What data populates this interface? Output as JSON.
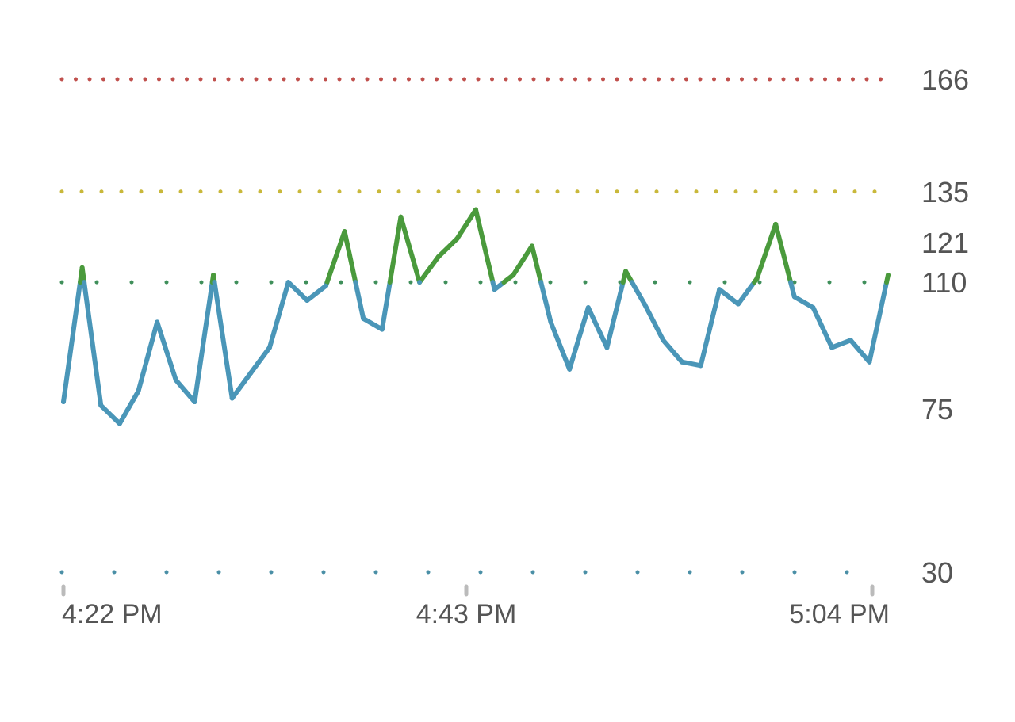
{
  "chart_data": {
    "type": "line",
    "title": "",
    "xlabel": "",
    "ylabel": "",
    "ylim": [
      30,
      166
    ],
    "xlim": [
      "4:20 PM",
      "5:04 PM"
    ],
    "x_ticks": [
      "4:22 PM",
      "4:43 PM",
      "5:04 PM"
    ],
    "y_ticks": [
      30,
      75,
      110,
      121,
      135,
      166
    ],
    "threshold_lines": [
      {
        "value": 166,
        "color": "#c0504d"
      },
      {
        "value": 135,
        "color": "#c9b83a"
      },
      {
        "value": 110,
        "color": "#3f8f5a"
      },
      {
        "value": 30,
        "color": "#4a8fa6"
      }
    ],
    "color_split_value": 110,
    "colors": {
      "below": "#4a96b8",
      "above": "#4a9a3c"
    },
    "x": [
      "4:20 PM",
      "4:21 PM",
      "4:22 PM",
      "4:23 PM",
      "4:24 PM",
      "4:25 PM",
      "4:26 PM",
      "4:27 PM",
      "4:28 PM",
      "4:29 PM",
      "4:30 PM",
      "4:31 PM",
      "4:32 PM",
      "4:33 PM",
      "4:34 PM",
      "4:35 PM",
      "4:36 PM",
      "4:37 PM",
      "4:38 PM",
      "4:39 PM",
      "4:40 PM",
      "4:41 PM",
      "4:42 PM",
      "4:43 PM",
      "4:44 PM",
      "4:45 PM",
      "4:46 PM",
      "4:47 PM",
      "4:48 PM",
      "4:49 PM",
      "4:50 PM",
      "4:51 PM",
      "4:52 PM",
      "4:53 PM",
      "4:54 PM",
      "4:55 PM",
      "4:56 PM",
      "4:57 PM",
      "4:58 PM",
      "4:59 PM",
      "5:00 PM",
      "5:01 PM",
      "5:02 PM",
      "5:03 PM",
      "5:04 PM"
    ],
    "series": [
      {
        "values": [
          77,
          114,
          76,
          71,
          80,
          99,
          83,
          77,
          112,
          78,
          85,
          92,
          110,
          105,
          109,
          124,
          100,
          97,
          128,
          110,
          117,
          122,
          130,
          108,
          112,
          120,
          99,
          86,
          103,
          92,
          113,
          104,
          94,
          88,
          87,
          108,
          104,
          111,
          126,
          106,
          103,
          92,
          94,
          88,
          112
        ]
      }
    ]
  }
}
